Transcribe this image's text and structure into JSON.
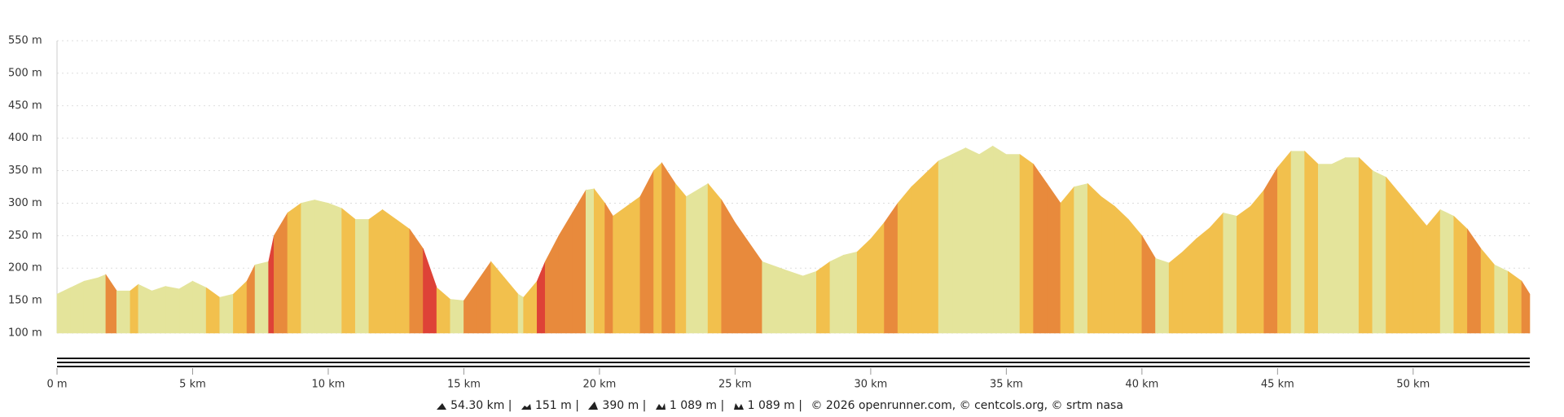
{
  "chart_data": {
    "type": "area",
    "xlim": [
      0,
      54.3
    ],
    "ylim": [
      100,
      550
    ],
    "xticks": [
      {
        "value": 0,
        "label": "0 m"
      },
      {
        "value": 5,
        "label": "5 km"
      },
      {
        "value": 10,
        "label": "10 km"
      },
      {
        "value": 15,
        "label": "15 km"
      },
      {
        "value": 20,
        "label": "20 km"
      },
      {
        "value": 25,
        "label": "25 km"
      },
      {
        "value": 30,
        "label": "30 km"
      },
      {
        "value": 35,
        "label": "35 km"
      },
      {
        "value": 40,
        "label": "40 km"
      },
      {
        "value": 45,
        "label": "45 km"
      },
      {
        "value": 50,
        "label": "50 km"
      }
    ],
    "yticks": [
      {
        "value": 100,
        "label": "100 m"
      },
      {
        "value": 150,
        "label": "150 m"
      },
      {
        "value": 200,
        "label": "200 m"
      },
      {
        "value": 250,
        "label": "250 m"
      },
      {
        "value": 300,
        "label": "300 m"
      },
      {
        "value": 350,
        "label": "350 m"
      },
      {
        "value": 400,
        "label": "400 m"
      },
      {
        "value": 450,
        "label": "450 m"
      },
      {
        "value": 500,
        "label": "500 m"
      },
      {
        "value": 550,
        "label": "550 m"
      }
    ],
    "grid": true,
    "series": [
      {
        "color": "#e4e49b",
        "x": [
          0,
          0.5,
          1,
          1.5,
          1.8,
          2.2,
          2.7,
          3,
          3.5,
          4,
          4.5,
          5,
          5.5,
          6,
          6.5,
          7,
          7.3,
          7.8,
          8,
          8.5,
          9,
          9.5,
          10,
          10.5,
          11,
          11.5,
          12,
          12.5,
          13,
          13.5,
          14,
          14.5,
          15,
          15.5,
          16,
          16.5,
          17,
          17.2,
          17.7,
          18,
          18.5,
          19,
          19.5,
          19.8,
          20.2,
          20.5,
          21,
          21.5,
          22,
          22.3,
          22.8,
          23.2,
          23.8,
          24,
          24.5,
          25,
          25.5,
          26,
          27,
          27.5,
          28,
          28.5,
          29,
          29.5,
          30,
          30.5,
          31,
          31.5,
          32,
          32.5,
          33,
          33.5,
          34,
          34.5,
          35,
          35.5,
          36,
          36.5,
          37,
          37.5,
          38,
          38.5,
          39,
          39.5,
          40,
          40.5,
          41,
          41.5,
          42,
          42.5,
          43,
          43.5,
          44,
          44.5,
          45,
          45.5,
          46,
          46.5,
          47,
          47.5,
          48,
          48.5,
          49,
          49.5,
          50,
          50.5,
          51,
          51.5,
          52,
          52.5,
          53,
          53.5,
          54,
          54.3
        ],
        "values": [
          160,
          170,
          180,
          185,
          190,
          165,
          165,
          175,
          165,
          172,
          168,
          180,
          170,
          155,
          160,
          180,
          205,
          210,
          250,
          285,
          300,
          305,
          300,
          292,
          275,
          275,
          290,
          275,
          260,
          230,
          170,
          152,
          150,
          180,
          210,
          185,
          160,
          155,
          180,
          210,
          250,
          285,
          320,
          322,
          300,
          280,
          295,
          310,
          350,
          362,
          330,
          310,
          325,
          330,
          305,
          270,
          240,
          210,
          195,
          188,
          195,
          210,
          220,
          225,
          245,
          270,
          300,
          325,
          345,
          365,
          375,
          385,
          375,
          388,
          375,
          375,
          360,
          330,
          300,
          325,
          330,
          310,
          295,
          275,
          250,
          215,
          208,
          225,
          245,
          262,
          285,
          280,
          295,
          320,
          355,
          380,
          380,
          360,
          360,
          370,
          370,
          350,
          340,
          315,
          290,
          265,
          290,
          280,
          260,
          230,
          205,
          195,
          180,
          160
        ],
        "segment_colors": [
          "#e4e49b",
          "#e4e49b",
          "#e4e49b",
          "#e4e49b",
          "#e88a3c",
          "#e4e49b",
          "#f2c04d",
          "#e4e49b",
          "#e4e49b",
          "#e4e49b",
          "#e4e49b",
          "#e4e49b",
          "#f2c04d",
          "#e4e49b",
          "#f2c04d",
          "#e88a3c",
          "#e4e49b",
          "#de4237",
          "#e88a3c",
          "#f2c04d",
          "#e4e49b",
          "#e4e49b",
          "#e4e49b",
          "#f2c04d",
          "#e4e49b",
          "#f2c04d",
          "#f2c04d",
          "#f2c04d",
          "#e88a3c",
          "#de4237",
          "#f2c04d",
          "#e4e49b",
          "#e88a3c",
          "#e88a3c",
          "#f2c04d",
          "#f2c04d",
          "#e4e49b",
          "#f2c04d",
          "#de4237",
          "#e88a3c",
          "#e88a3c",
          "#e88a3c",
          "#e4e49b",
          "#f2c04d",
          "#e88a3c",
          "#f2c04d",
          "#f2c04d",
          "#e88a3c",
          "#f2c04d",
          "#e88a3c",
          "#f2c04d",
          "#e4e49b",
          "#e4e49b",
          "#f2c04d",
          "#e88a3c",
          "#e88a3c",
          "#e88a3c",
          "#e4e49b",
          "#e4e49b",
          "#e4e49b",
          "#f2c04d",
          "#e4e49b",
          "#e4e49b",
          "#f2c04d",
          "#f2c04d",
          "#e88a3c",
          "#f2c04d",
          "#f2c04d",
          "#f2c04d",
          "#e4e49b",
          "#e4e49b",
          "#e4e49b",
          "#e4e49b",
          "#e4e49b",
          "#e4e49b",
          "#f2c04d",
          "#e88a3c",
          "#e88a3c",
          "#f2c04d",
          "#e4e49b",
          "#f2c04d",
          "#f2c04d",
          "#f2c04d",
          "#f2c04d",
          "#e88a3c",
          "#e4e49b",
          "#f2c04d",
          "#f2c04d",
          "#f2c04d",
          "#f2c04d",
          "#e4e49b",
          "#f2c04d",
          "#f2c04d",
          "#e88a3c",
          "#f2c04d",
          "#e4e49b",
          "#f2c04d",
          "#e4e49b",
          "#e4e49b",
          "#e4e49b",
          "#f2c04d",
          "#e4e49b",
          "#f2c04d",
          "#f2c04d",
          "#f2c04d",
          "#f2c04d",
          "#e4e49b",
          "#f2c04d",
          "#e88a3c",
          "#f2c04d",
          "#e4e49b",
          "#f2c04d",
          "#e88a3c"
        ]
      }
    ]
  },
  "footer": {
    "stats": [
      "54.30 km |",
      "151 m |",
      "390 m |",
      "1 089 m |",
      "1 089 m |"
    ],
    "credits": "© 2026 openrunner.com, © centcols.org, © srtm nasa"
  }
}
